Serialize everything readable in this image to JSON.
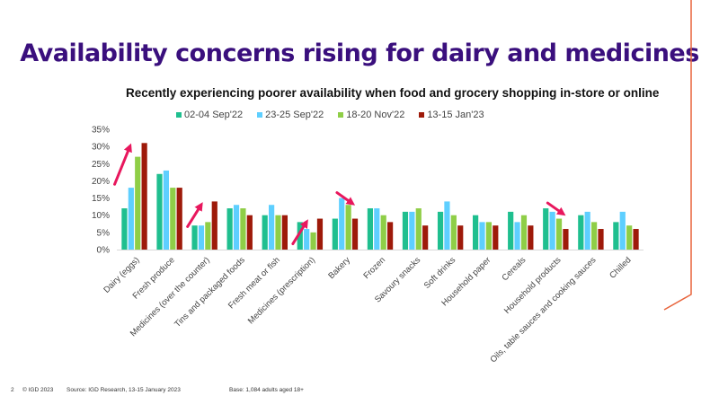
{
  "slide": {
    "title": "Availability concerns rising for dairy and medicines",
    "page_number": "2",
    "copyright": "© IGD 2023",
    "source": "Source: IGD Research, 13-15 January 2023",
    "base": "Base: 1,084 adults aged 18+",
    "accent_color": "#e8643c"
  },
  "chart_data": {
    "type": "bar",
    "title": "Recently experiencing poorer availability when food and grocery shopping in-store or online",
    "xlabel": "",
    "ylabel": "",
    "ylim": [
      0,
      35
    ],
    "yticks": [
      "0%",
      "5%",
      "10%",
      "15%",
      "20%",
      "25%",
      "30%",
      "35%"
    ],
    "ytick_values": [
      0,
      5,
      10,
      15,
      20,
      25,
      30,
      35
    ],
    "grid": false,
    "legend_position": "top-center",
    "categories": [
      "Dairy (eggs)",
      "Fresh produce",
      "Medicines (over the counter)",
      "Tins and packaged foods",
      "Fresh meat or fish",
      "Medicines (prescription)",
      "Bakery",
      "Frozen",
      "Savoury snacks",
      "Soft drinks",
      "Household paper",
      "Cereals",
      "Household products",
      "Oils, table sauces and cooking sauces",
      "Chilled"
    ],
    "series": [
      {
        "name": "02-04 Sep'22",
        "color": "#1fbf8f",
        "values": [
          12,
          22,
          7,
          12,
          10,
          8,
          9,
          12,
          11,
          11,
          10,
          11,
          12,
          10,
          8
        ]
      },
      {
        "name": "23-25 Sep'22",
        "color": "#5ecfff",
        "values": [
          18,
          23,
          7,
          13,
          13,
          6,
          15,
          12,
          11,
          14,
          8,
          8,
          11,
          11,
          11
        ]
      },
      {
        "name": "18-20 Nov'22",
        "color": "#8fce47",
        "values": [
          27,
          18,
          8,
          12,
          10,
          5,
          13,
          10,
          12,
          10,
          8,
          10,
          9,
          8,
          7
        ]
      },
      {
        "name": "13-15 Jan'23",
        "color": "#9e1a0a",
        "values": [
          31,
          18,
          14,
          10,
          10,
          9,
          9,
          8,
          7,
          7,
          7,
          7,
          6,
          6,
          6
        ]
      }
    ],
    "annotations": [
      {
        "type": "arrow",
        "direction": "up",
        "category": "Dairy (eggs)",
        "color": "#e8175d"
      },
      {
        "type": "arrow",
        "direction": "up",
        "category": "Medicines (over the counter)",
        "color": "#e8175d"
      },
      {
        "type": "arrow",
        "direction": "up",
        "category": "Medicines (prescription)",
        "color": "#e8175d"
      },
      {
        "type": "arrow",
        "direction": "down",
        "category": "Bakery",
        "color": "#e8175d"
      },
      {
        "type": "arrow",
        "direction": "down",
        "category": "Household products",
        "color": "#e8175d"
      }
    ]
  }
}
